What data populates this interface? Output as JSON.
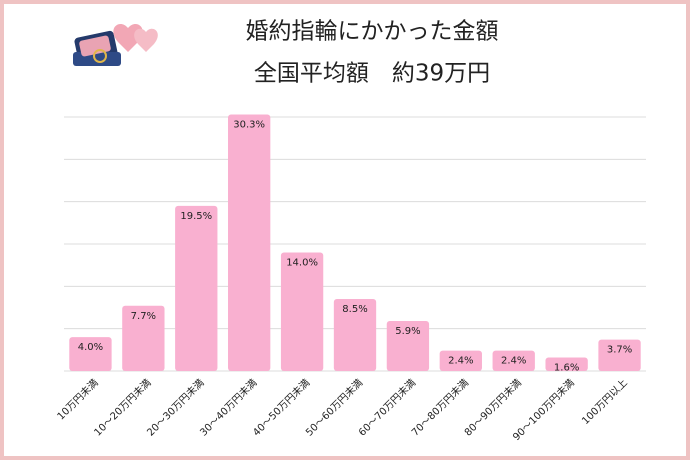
{
  "chart_data": {
    "type": "bar",
    "title": "婚約指輪にかかった金額",
    "subtitle": "全国平均額　約39万円",
    "categories": [
      "10万円未満",
      "10～20万円未満",
      "20～30万円未満",
      "30～40万円未満",
      "40～50万円未満",
      "50～60万円未満",
      "60～70万円未満",
      "70～80万円未満",
      "80～90万円未満",
      "90～100万円未満",
      "100万円以上"
    ],
    "values": [
      4.0,
      7.7,
      19.5,
      30.3,
      14.0,
      8.5,
      5.9,
      2.4,
      2.4,
      1.6,
      3.7
    ],
    "value_labels": [
      "4.0%",
      "7.7%",
      "19.5%",
      "30.3%",
      "14.0%",
      "8.5%",
      "5.9%",
      "2.4%",
      "2.4%",
      "1.6%",
      "3.7%"
    ],
    "color": "#f9b0d0",
    "ylim": [
      0,
      30
    ],
    "yticks": [
      0,
      5,
      10,
      15,
      20,
      25,
      30
    ],
    "grid": true
  }
}
